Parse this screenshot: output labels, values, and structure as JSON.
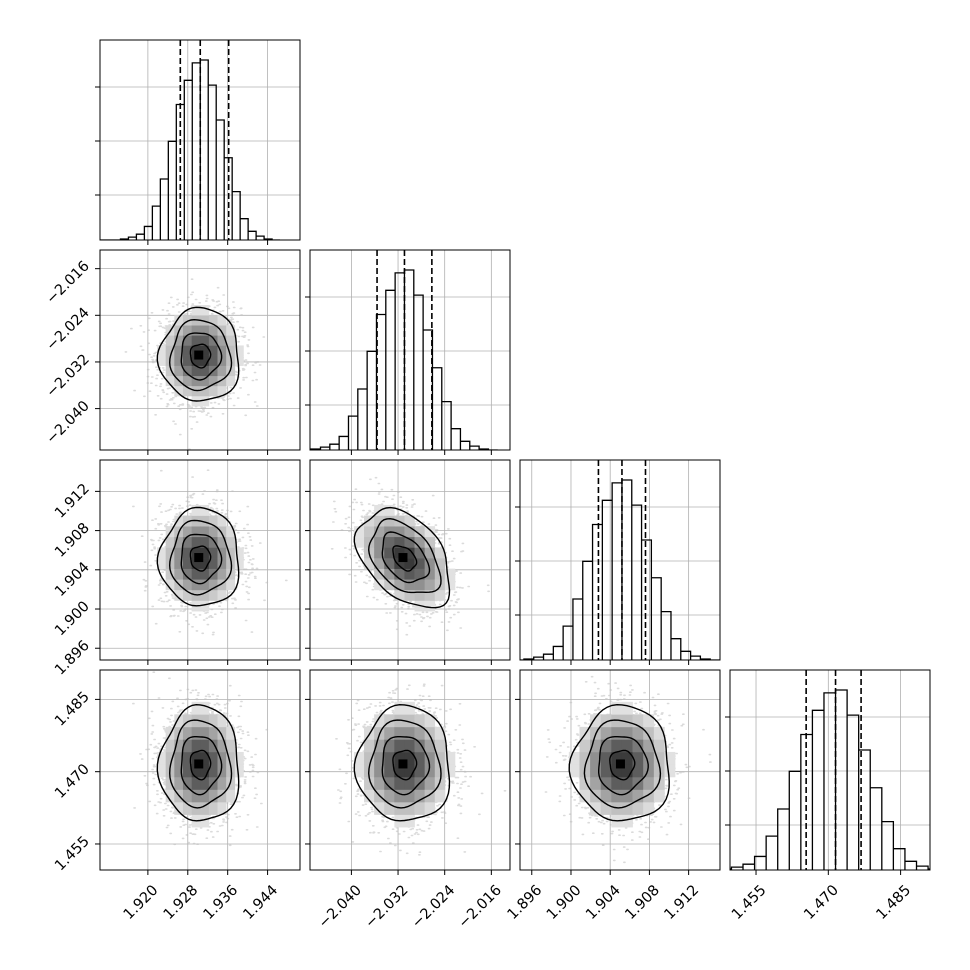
{
  "chart_data": {
    "type": "corner",
    "grid": true,
    "quantile_lines": "dashed",
    "params": [
      {
        "mean": 1.9305,
        "sd": 0.004,
        "q": [
          1.9265,
          1.9305,
          1.9362
        ],
        "lim": [
          1.9104,
          1.9505
        ],
        "ticks": [
          1.92,
          1.928,
          1.936,
          1.944
        ],
        "tick_labels": [
          "1.920",
          "1.928",
          "1.936",
          "1.944"
        ]
      },
      {
        "mean": -2.0309,
        "sd": 0.004,
        "q": [
          -2.0356,
          -2.0309,
          -2.0262
        ],
        "lim": [
          -2.0471,
          -2.0128
        ],
        "ticks": [
          -2.04,
          -2.032,
          -2.024,
          -2.016
        ],
        "tick_labels": [
          "−2.040",
          "−2.032",
          "−2.024",
          "−2.016"
        ]
      },
      {
        "mean": 1.9052,
        "sd": 0.0025,
        "q": [
          1.9028,
          1.9052,
          1.9076
        ],
        "lim": [
          1.8948,
          1.9152
        ],
        "ticks": [
          1.896,
          1.9,
          1.904,
          1.908,
          1.912
        ],
        "tick_labels": [
          "1.896",
          "1.900",
          "1.904",
          "1.908",
          "1.912"
        ]
      },
      {
        "mean": 1.4715,
        "sd": 0.006,
        "q": [
          1.4654,
          1.4715,
          1.4768
        ],
        "lim": [
          1.4496,
          1.4911
        ],
        "ticks": [
          1.455,
          1.47,
          1.485
        ],
        "tick_labels": [
          "1.455",
          "1.470",
          "1.485"
        ]
      }
    ],
    "histograms": [
      [
        1,
        3,
        6,
        14,
        35,
        63,
        102,
        140,
        165,
        183,
        186,
        160,
        124,
        85,
        50,
        22,
        9,
        4,
        1,
        0
      ],
      [
        1,
        3,
        6,
        14,
        35,
        63,
        102,
        140,
        165,
        183,
        186,
        160,
        124,
        85,
        50,
        22,
        9,
        4,
        1,
        0
      ],
      [
        1,
        3,
        6,
        14,
        35,
        63,
        102,
        140,
        165,
        183,
        186,
        160,
        124,
        85,
        50,
        22,
        9,
        4,
        1,
        0
      ],
      [
        1,
        3,
        6,
        14,
        35,
        63,
        102,
        140,
        165,
        183,
        186,
        160,
        124,
        85,
        50,
        22,
        9,
        4,
        1,
        0
      ]
    ],
    "correlations": {
      "1-0": 0.0,
      "2-0": 0.0,
      "2-1": -0.4,
      "3-0": 0.0,
      "3-1": 0.0,
      "3-2": 0.0
    },
    "contour_levels_sigma": [
      0.5,
      1.0,
      1.5,
      2.0
    ]
  }
}
